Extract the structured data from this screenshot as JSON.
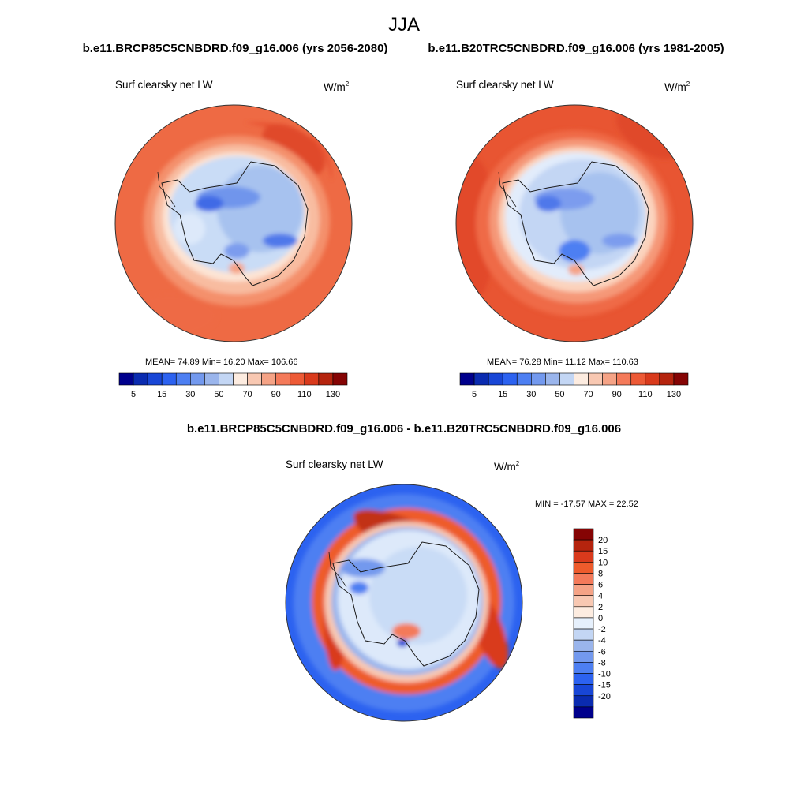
{
  "page_title": "JJA",
  "panel_left": {
    "case_title": "b.e11.BRCP85C5CNBDRD.f09_g16.006 (yrs 2056-2080)",
    "variable": "Surf clearsky net LW",
    "units": "W/m",
    "units_exp": "2",
    "stats": "MEAN=  74.89  Min=  16.20  Max= 106.66"
  },
  "panel_right": {
    "case_title": "b.e11.B20TRC5CNBDRD.f09_g16.006 (yrs 1981-2005)",
    "variable": "Surf clearsky net LW",
    "units": "W/m",
    "units_exp": "2",
    "stats": "MEAN=  76.28  Min=  11.12  Max= 110.63"
  },
  "panel_diff": {
    "title": "b.e11.BRCP85C5CNBDRD.f09_g16.006 - b.e11.B20TRC5CNBDRD.f09_g16.006",
    "variable": "Surf clearsky net LW",
    "units": "W/m",
    "units_exp": "2",
    "stats": "MIN = -17.57 MAX =  22.52"
  },
  "chart_data": [
    {
      "type": "heatmap",
      "title": "b.e11.BRCP85C5CNBDRD.f09_g16.006 (yrs 2056-2080)",
      "variable": "Surf clearsky net LW",
      "units": "W/m2",
      "projection": "south polar stereographic",
      "colorbar": {
        "orientation": "horizontal",
        "levels": [
          5,
          15,
          30,
          50,
          70,
          90,
          110,
          130
        ],
        "colors": [
          "#00008c",
          "#0a2bb0",
          "#1846d6",
          "#2c62f0",
          "#4d7ff2",
          "#7399ee",
          "#9ab5ec",
          "#c3d6f4",
          "#fdece0",
          "#f8c8b2",
          "#f5a386",
          "#f47a5a",
          "#ed5a36",
          "#d93a1c",
          "#b5240e",
          "#850404"
        ]
      },
      "mean": 74.89,
      "min": 16.2,
      "max": 106.66
    },
    {
      "type": "heatmap",
      "title": "b.e11.B20TRC5CNBDRD.f09_g16.006 (yrs 1981-2005)",
      "variable": "Surf clearsky net LW",
      "units": "W/m2",
      "projection": "south polar stereographic",
      "colorbar": {
        "orientation": "horizontal",
        "levels": [
          5,
          15,
          30,
          50,
          70,
          90,
          110,
          130
        ],
        "colors": [
          "#00008c",
          "#0a2bb0",
          "#1846d6",
          "#2c62f0",
          "#4d7ff2",
          "#7399ee",
          "#9ab5ec",
          "#c3d6f4",
          "#fdece0",
          "#f8c8b2",
          "#f5a386",
          "#f47a5a",
          "#ed5a36",
          "#d93a1c",
          "#b5240e",
          "#850404"
        ]
      },
      "mean": 76.28,
      "min": 11.12,
      "max": 110.63
    },
    {
      "type": "heatmap",
      "title": "b.e11.BRCP85C5CNBDRD.f09_g16.006 - b.e11.B20TRC5CNBDRD.f09_g16.006",
      "variable": "Surf clearsky net LW",
      "units": "W/m2",
      "projection": "south polar stereographic",
      "colorbar": {
        "orientation": "vertical",
        "levels": [
          20,
          15,
          10,
          8,
          6,
          4,
          2,
          0,
          -2,
          -4,
          -6,
          -8,
          -10,
          -15,
          -20
        ],
        "colors_top_to_bottom": [
          "#850404",
          "#b5240e",
          "#d93a1c",
          "#ee5b2c",
          "#f47a5a",
          "#f5a386",
          "#f8c8b2",
          "#fdece0",
          "#e6f0fc",
          "#c3d6f4",
          "#9ab5ec",
          "#7399ee",
          "#4d7ff2",
          "#2c62f0",
          "#1846d6",
          "#0a2bb0",
          "#00008c"
        ]
      },
      "min": -17.57,
      "max": 22.52
    }
  ]
}
